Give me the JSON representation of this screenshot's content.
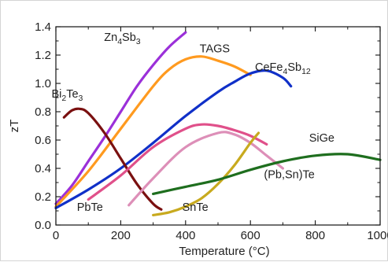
{
  "chart_data": {
    "type": "line",
    "title": "",
    "xlabel": "Temperature (°C)",
    "ylabel": "zT",
    "xlim": [
      0,
      1000
    ],
    "ylim": [
      0.0,
      1.4
    ],
    "x_ticks": [
      "0",
      "200",
      "400",
      "600",
      "800",
      "1000"
    ],
    "y_ticks": [
      "0.0",
      "0.2",
      "0.4",
      "0.6",
      "0.8",
      "1.0",
      "1.2",
      "1.4"
    ],
    "grid": false,
    "legend": "none (series labelled directly on the plot)",
    "series": [
      {
        "name": "Zn4Sb3",
        "color": "#9b30d9",
        "x": [
          0,
          50,
          100,
          150,
          200,
          250,
          300,
          350,
          400
        ],
        "y": [
          0.15,
          0.28,
          0.45,
          0.62,
          0.8,
          0.98,
          1.13,
          1.26,
          1.36
        ]
      },
      {
        "name": "TAGS",
        "color": "#ff9a1f",
        "x": [
          0,
          100,
          200,
          300,
          350,
          400,
          450,
          500,
          550,
          600
        ],
        "y": [
          0.13,
          0.38,
          0.68,
          0.98,
          1.1,
          1.17,
          1.19,
          1.16,
          1.12,
          1.06
        ]
      },
      {
        "name": "CeFe4Sb12",
        "color": "#1030c8",
        "x": [
          0,
          100,
          200,
          300,
          400,
          500,
          550,
          600,
          650,
          700,
          725
        ],
        "y": [
          0.12,
          0.25,
          0.4,
          0.58,
          0.77,
          0.94,
          1.01,
          1.07,
          1.09,
          1.04,
          0.98
        ]
      },
      {
        "name": "Bi2Te3",
        "color": "#7a1010",
        "x": [
          25,
          50,
          75,
          100,
          150,
          200,
          250,
          300,
          325
        ],
        "y": [
          0.76,
          0.81,
          0.82,
          0.79,
          0.65,
          0.47,
          0.29,
          0.15,
          0.11
        ]
      },
      {
        "name": "PbTe",
        "color": "#e0508a",
        "x": [
          100,
          200,
          300,
          400,
          450,
          500,
          550,
          600,
          650
        ],
        "y": [
          0.18,
          0.35,
          0.55,
          0.68,
          0.71,
          0.7,
          0.67,
          0.63,
          0.57
        ]
      },
      {
        "name": "(Pb,Sn)Te",
        "color": "#dd8fb8",
        "x": [
          225,
          300,
          400,
          500,
          550,
          600,
          650,
          700
        ],
        "y": [
          0.14,
          0.33,
          0.55,
          0.65,
          0.64,
          0.58,
          0.49,
          0.4
        ]
      },
      {
        "name": "SnTe",
        "color": "#c8aa1e",
        "x": [
          300,
          350,
          400,
          450,
          500,
          550,
          600,
          625
        ],
        "y": [
          0.07,
          0.09,
          0.13,
          0.19,
          0.29,
          0.42,
          0.58,
          0.65
        ]
      },
      {
        "name": "SiGe",
        "color": "#1e6e1e",
        "x": [
          300,
          400,
          500,
          600,
          700,
          800,
          900,
          1000
        ],
        "y": [
          0.22,
          0.27,
          0.32,
          0.39,
          0.45,
          0.49,
          0.5,
          0.46
        ]
      }
    ],
    "labels": [
      {
        "series": "Zn4Sb3",
        "base": "Zn",
        "sub1": "4",
        "mid": "Sb",
        "sub2": "3",
        "tail": "",
        "x": 205,
        "y": 1.3
      },
      {
        "series": "TAGS",
        "base": "TAGS",
        "sub1": "",
        "mid": "",
        "sub2": "",
        "tail": "",
        "x": 490,
        "y": 1.22
      },
      {
        "series": "CeFe4Sb12",
        "base": "CeFe",
        "sub1": "4",
        "mid": "Sb",
        "sub2": "12",
        "tail": "",
        "x": 700,
        "y": 1.09
      },
      {
        "series": "Bi2Te3",
        "base": "Bi",
        "sub1": "2",
        "mid": "Te",
        "sub2": "3",
        "tail": "",
        "x": 35,
        "y": 0.9
      },
      {
        "series": "PbTe",
        "base": "PbTe",
        "sub1": "",
        "mid": "",
        "sub2": "",
        "tail": "",
        "x": 105,
        "y": 0.1
      },
      {
        "series": "SnTe",
        "base": "SnTe",
        "sub1": "",
        "mid": "",
        "sub2": "",
        "tail": "",
        "x": 430,
        "y": 0.1
      },
      {
        "series": "SiGe",
        "base": "SiGe",
        "sub1": "",
        "mid": "",
        "sub2": "",
        "tail": "",
        "x": 820,
        "y": 0.59
      },
      {
        "series": "(Pb,Sn)Te",
        "base": "(Pb,Sn)Te",
        "sub1": "",
        "mid": "",
        "sub2": "",
        "tail": "",
        "x": 720,
        "y": 0.33
      }
    ]
  }
}
